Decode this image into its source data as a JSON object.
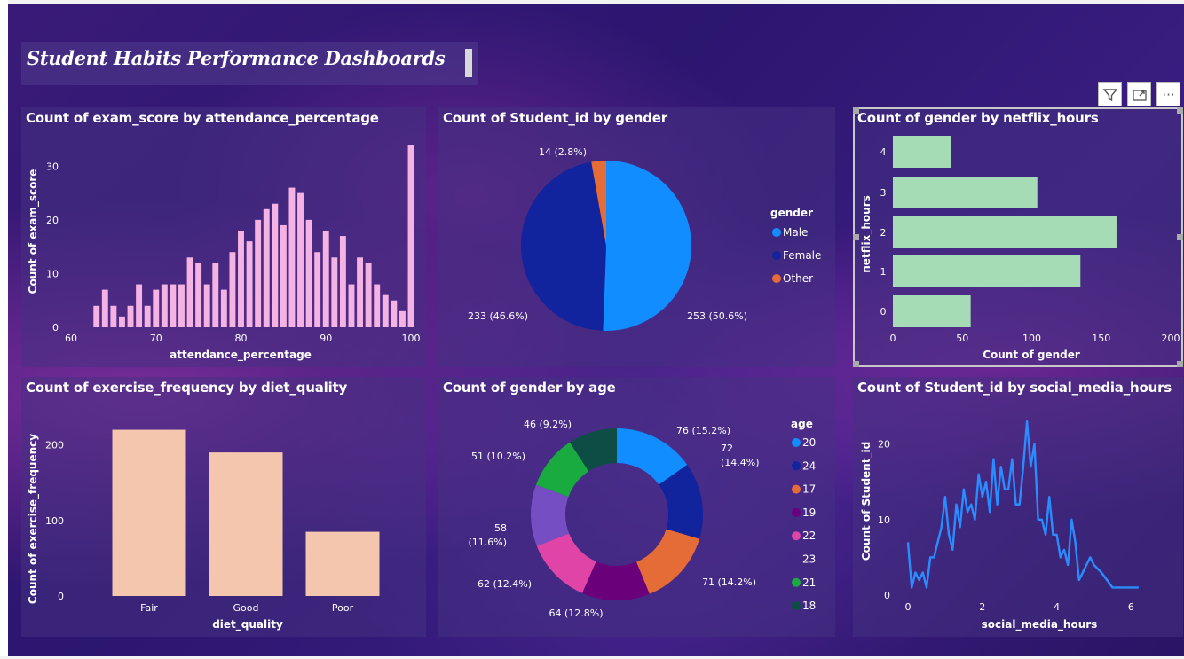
{
  "dashboard": {
    "title": "Student Habits Performance Dashboards"
  },
  "toolbar": {
    "filter_icon": "filter-icon",
    "focus_icon": "focus-mode-icon",
    "more_icon": "more-options-icon",
    "more_label": "···"
  },
  "colors": {
    "pink_bar": "#f4b3e2",
    "male": "#118dff",
    "female": "#12239e",
    "other": "#e66c37",
    "green_bar": "#a5dcb5",
    "peach_bar": "#f4c6ad",
    "line": "#2b8cff"
  },
  "chart_data": [
    {
      "id": "attendance",
      "type": "bar",
      "title": "Count of exam_score by attendance_percentage",
      "xlabel": "attendance_percentage",
      "ylabel": "Count of exam_score",
      "xlim": [
        60,
        100
      ],
      "ylim": [
        0,
        36
      ],
      "x_ticks": [
        60,
        70,
        80,
        90,
        100
      ],
      "y_ticks": [
        0,
        10,
        20,
        30
      ],
      "x": [
        63,
        64,
        65,
        66,
        67,
        68,
        69,
        70,
        71,
        72,
        73,
        74,
        75,
        76,
        77,
        78,
        79,
        80,
        81,
        82,
        83,
        84,
        85,
        86,
        87,
        88,
        89,
        90,
        91,
        92,
        93,
        94,
        95,
        96,
        97,
        98,
        99,
        100
      ],
      "values": [
        4,
        7,
        4,
        2,
        4,
        8,
        4,
        7,
        8,
        8,
        8,
        13,
        12,
        8,
        12,
        7,
        14,
        18,
        16,
        20,
        22,
        23,
        19,
        26,
        25,
        20,
        14,
        18,
        13,
        17,
        8,
        13,
        12,
        8,
        6,
        5,
        3,
        34
      ]
    },
    {
      "id": "gender_pie",
      "type": "pie",
      "title": "Count of Student_id by gender",
      "legend_title": "gender",
      "legend_position": "right",
      "categories": [
        "Male",
        "Female",
        "Other"
      ],
      "values": [
        253,
        233,
        14
      ],
      "labels": [
        "253 (50.6%)",
        "233 (46.6%)",
        "14 (2.8%)"
      ]
    },
    {
      "id": "netflix",
      "type": "bar",
      "orientation": "horizontal",
      "title": "Count of gender by netflix_hours",
      "xlabel": "Count of gender",
      "ylabel": "netflix_hours",
      "xlim": [
        0,
        200
      ],
      "x_ticks": [
        0,
        50,
        100,
        150,
        200
      ],
      "categories": [
        "4",
        "3",
        "2",
        "1",
        "0"
      ],
      "values": [
        42,
        104,
        161,
        135,
        56
      ]
    },
    {
      "id": "diet",
      "type": "bar",
      "title": "Count of exercise_frequency by diet_quality",
      "xlabel": "diet_quality",
      "ylabel": "Count of exercise_frequency",
      "ylim": [
        0,
        250
      ],
      "y_ticks": [
        0,
        100,
        200
      ],
      "categories": [
        "Fair",
        "Good",
        "Poor"
      ],
      "values": [
        220,
        190,
        85
      ]
    },
    {
      "id": "age_donut",
      "type": "pie",
      "subtype": "donut",
      "title": "Count of gender by age",
      "legend_title": "age",
      "legend_position": "right",
      "categories": [
        "20",
        "24",
        "17",
        "19",
        "22",
        "23",
        "21",
        "18"
      ],
      "values": [
        76,
        72,
        71,
        64,
        62,
        58,
        51,
        46
      ],
      "labels": [
        "76 (15.2%)",
        "72 (14.4%)",
        "71 (14.2%)",
        "64 (12.8%)",
        "62 (12.4%)",
        "58 (11.6%)",
        "51 (10.2%)",
        "46 (9.2%)"
      ],
      "label_lines": [
        [
          "76 (15.2%)"
        ],
        [
          "72",
          "(14.4%)"
        ],
        [
          "71 (14.2%)"
        ],
        [
          "64 (12.8%)"
        ],
        [
          "62 (12.4%)"
        ],
        [
          "58",
          "(11.6%)"
        ],
        [
          "51 (10.2%)"
        ],
        [
          "46 (9.2%)"
        ]
      ],
      "colors": [
        "#118dff",
        "#12239e",
        "#e66c37",
        "#6b007b",
        "#e044a7",
        "#744ec2",
        "#1aab40",
        "#0d4d45"
      ]
    },
    {
      "id": "social",
      "type": "line",
      "title": "Count of Student_id by social_media_hours",
      "xlabel": "social_media_hours",
      "ylabel": "Count of Student_id",
      "xlim": [
        0,
        6.3
      ],
      "ylim": [
        0,
        25
      ],
      "x_ticks": [
        0,
        2,
        4,
        6
      ],
      "y_ticks": [
        0,
        10,
        20
      ],
      "x": [
        0,
        0.1,
        0.2,
        0.3,
        0.4,
        0.5,
        0.6,
        0.7,
        0.8,
        0.9,
        1.0,
        1.1,
        1.2,
        1.3,
        1.4,
        1.5,
        1.6,
        1.7,
        1.8,
        1.9,
        2.0,
        2.1,
        2.2,
        2.3,
        2.4,
        2.5,
        2.6,
        2.7,
        2.8,
        2.9,
        3.0,
        3.1,
        3.2,
        3.3,
        3.4,
        3.5,
        3.6,
        3.7,
        3.8,
        3.9,
        4.0,
        4.1,
        4.2,
        4.3,
        4.4,
        4.5,
        4.6,
        4.7,
        4.8,
        4.9,
        5.0,
        5.2,
        5.5,
        5.8,
        6.0,
        6.2
      ],
      "values": [
        7,
        1,
        3,
        2,
        3,
        1,
        5,
        5,
        7,
        9,
        13,
        8,
        6,
        12,
        9,
        14,
        11,
        12,
        10,
        16,
        13,
        15,
        11,
        18,
        12,
        17,
        14,
        14,
        18,
        12,
        12,
        17,
        23,
        17,
        20,
        10,
        10,
        8,
        13,
        8,
        8,
        5,
        6,
        4,
        10,
        7,
        2,
        3,
        4,
        5,
        4,
        3,
        1,
        1,
        1,
        1
      ]
    }
  ]
}
